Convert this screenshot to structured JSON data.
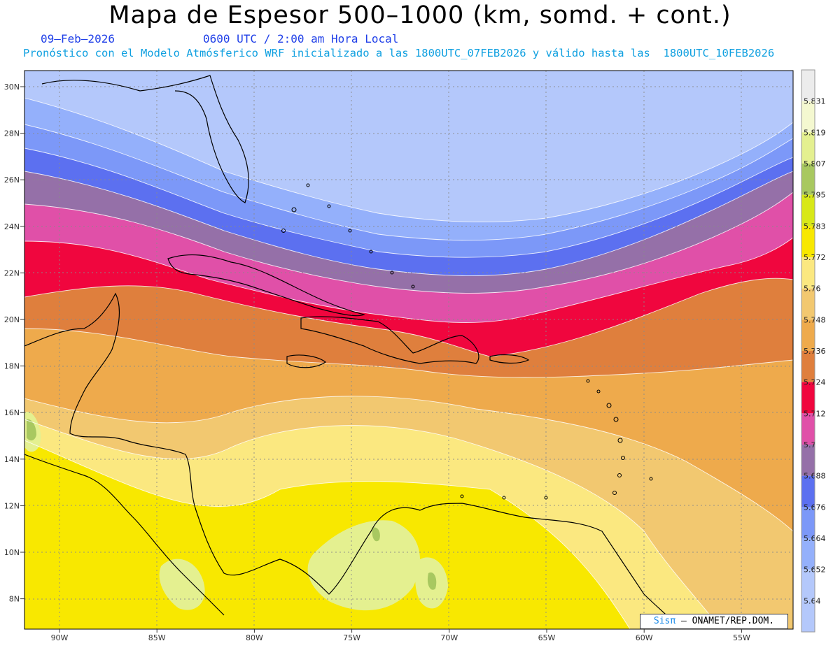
{
  "title": "Mapa de Espesor 500–1000 (km, somd. + cont.)",
  "subtitle": {
    "date": "09–Feb–2026",
    "time": "0600 UTC / 2:00 am Hora Local",
    "description": "Pronóstico con el Modelo Atmósferico WRF inicializado a las 1800UTC_07FEB2026 y válido hasta las  1800UTC_10FEB2026"
  },
  "lat_labels": [
    "30N",
    "28N",
    "26N",
    "24N",
    "22N",
    "20N",
    "18N",
    "16N",
    "14N",
    "12N",
    "10N",
    "8N"
  ],
  "lon_labels": [
    "90W",
    "85W",
    "80W",
    "75W",
    "70W",
    "65W",
    "60W",
    "55W"
  ],
  "colorbar": {
    "labels": [
      "5.831",
      "5.819",
      "5.807",
      "5.795",
      "5.783",
      "5.772",
      "5.76",
      "5.748",
      "5.736",
      "5.724",
      "5.712",
      "5.7",
      "5.688",
      "5.676",
      "5.664",
      "5.652",
      "5.64"
    ],
    "colors": [
      "#ececec",
      "#f4f8d0",
      "#e4f090",
      "#a8c860",
      "#d8e818",
      "#f8e800",
      "#fbe880",
      "#f2c870",
      "#eeaa4c",
      "#df7f3d",
      "#f0063e",
      "#e050a8",
      "#9570a8",
      "#5c70f0",
      "#7c98f8",
      "#94b0fb",
      "#b4c8fb"
    ]
  },
  "credit": {
    "logo": "Sisπ",
    "text": "– ONAMET/REP.DOM."
  }
}
